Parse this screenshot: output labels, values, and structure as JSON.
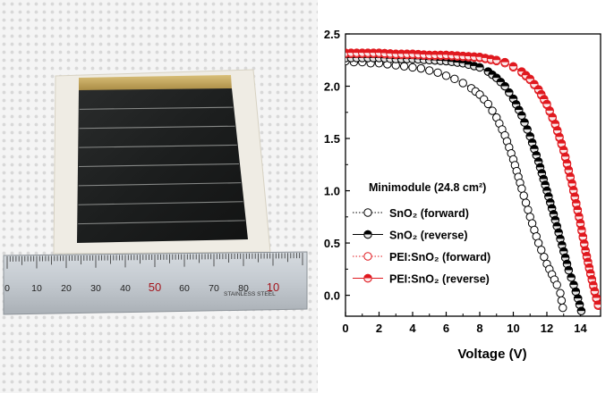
{
  "photo": {
    "ruler_numbers": [
      "0",
      "10",
      "20",
      "30",
      "40",
      "50",
      "60",
      "70",
      "80",
      "10"
    ],
    "ruler_label": "STAINLESS STEEL"
  },
  "chart_data": {
    "type": "scatter",
    "title": "",
    "xlabel": "Voltage (V)",
    "ylabel": "",
    "xlim": [
      0,
      15.2
    ],
    "ylim": [
      -0.2,
      2.5
    ],
    "xticks": [
      0,
      2,
      4,
      6,
      8,
      10,
      12,
      14
    ],
    "yticks": [
      0.0,
      0.5,
      1.0,
      1.5,
      2.0,
      2.5
    ],
    "grid": false,
    "legend_title": "Minimodule (24.8 cm²)",
    "legend_position": "lower-left",
    "series": [
      {
        "name": "SnO₂ (forward)",
        "color": "#000000",
        "marker": "open",
        "line": "dotted",
        "x": [
          0,
          0.5,
          1,
          1.5,
          2,
          2.5,
          3,
          3.5,
          4,
          4.5,
          5,
          5.5,
          6,
          6.5,
          7,
          7.5,
          8,
          8.5,
          9,
          9.5,
          10,
          10.5,
          11,
          11.5,
          12,
          12.3,
          12.6,
          12.8,
          12.95
        ],
        "y": [
          2.24,
          2.23,
          2.23,
          2.22,
          2.22,
          2.21,
          2.2,
          2.19,
          2.18,
          2.17,
          2.15,
          2.13,
          2.1,
          2.07,
          2.03,
          1.98,
          1.92,
          1.83,
          1.7,
          1.53,
          1.3,
          1.02,
          0.75,
          0.5,
          0.3,
          0.2,
          0.1,
          0.02,
          -0.12
        ]
      },
      {
        "name": "SnO₂ (reverse)",
        "color": "#000000",
        "marker": "filled",
        "line": "solid",
        "x": [
          0,
          1,
          2,
          3,
          4,
          5,
          6,
          7,
          8,
          8.5,
          9,
          9.5,
          10,
          10.5,
          11,
          11.5,
          12,
          12.5,
          13,
          13.3,
          13.6,
          13.85,
          14.05
        ],
        "y": [
          2.27,
          2.27,
          2.27,
          2.26,
          2.26,
          2.25,
          2.24,
          2.22,
          2.18,
          2.14,
          2.08,
          2.0,
          1.88,
          1.72,
          1.52,
          1.28,
          1.0,
          0.72,
          0.42,
          0.24,
          0.1,
          -0.03,
          -0.15
        ]
      },
      {
        "name": "PEI:SnO₂ (forward)",
        "color": "#e0191f",
        "marker": "open",
        "line": "dotted",
        "x": [
          0,
          1,
          2,
          3,
          4,
          5,
          6,
          7,
          8,
          9,
          9.5,
          10,
          10.5,
          11,
          11.5,
          12,
          12.5,
          13,
          13.5,
          14,
          14.3,
          14.6,
          14.85,
          15.05
        ],
        "y": [
          2.31,
          2.31,
          2.31,
          2.3,
          2.3,
          2.29,
          2.29,
          2.28,
          2.27,
          2.24,
          2.22,
          2.18,
          2.13,
          2.06,
          1.96,
          1.82,
          1.63,
          1.38,
          1.06,
          0.68,
          0.42,
          0.2,
          0.03,
          -0.1
        ]
      },
      {
        "name": "PEI:SnO₂ (reverse)",
        "color": "#e0191f",
        "marker": "filled",
        "line": "solid",
        "x": [
          0,
          1,
          2,
          3,
          4,
          5,
          6,
          7,
          8,
          9,
          9.5,
          10,
          10.5,
          11,
          11.5,
          12,
          12.5,
          13,
          13.5,
          14,
          14.3,
          14.6,
          14.85,
          15.05
        ],
        "y": [
          2.32,
          2.32,
          2.32,
          2.31,
          2.31,
          2.3,
          2.3,
          2.29,
          2.28,
          2.25,
          2.23,
          2.19,
          2.14,
          2.07,
          1.97,
          1.83,
          1.64,
          1.39,
          1.07,
          0.69,
          0.43,
          0.21,
          0.04,
          -0.09
        ]
      }
    ]
  }
}
